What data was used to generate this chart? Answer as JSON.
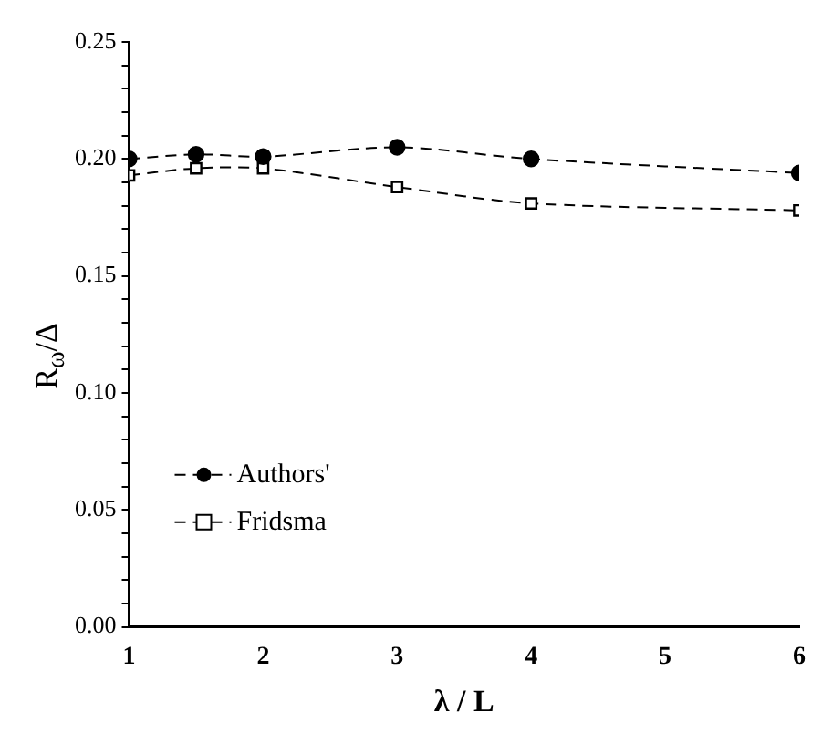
{
  "chart_data": {
    "type": "line",
    "xlabel": "λ / L",
    "ylabel": "R$_{ω}$/Δ",
    "xlim": [
      1,
      6
    ],
    "xticks": [
      1,
      2,
      3,
      4,
      5,
      6
    ],
    "ylim": [
      0,
      0.25
    ],
    "yticks": [
      {
        "value": 0,
        "label": "0.00"
      },
      {
        "value": 0.01,
        "label": null
      },
      {
        "value": 0.02,
        "label": null
      },
      {
        "value": 0.03,
        "label": null
      },
      {
        "value": 0.04,
        "label": null
      },
      0.05,
      {
        "value": 0.06,
        "label": null
      },
      {
        "value": 0.07,
        "label": null
      },
      {
        "value": 0.08,
        "label": null
      },
      {
        "value": 0.09,
        "label": null
      },
      {
        "value": 0.1,
        "label": "0.10"
      },
      {
        "value": 0.11,
        "label": null
      },
      {
        "value": 0.12,
        "label": null
      },
      {
        "value": 0.13,
        "label": null
      },
      {
        "value": 0.14,
        "label": null
      },
      0.15,
      {
        "value": 0.16,
        "label": null
      },
      {
        "value": 0.17,
        "label": null
      },
      {
        "value": 0.18,
        "label": null
      },
      {
        "value": 0.19,
        "label": null
      },
      {
        "value": 0.2,
        "label": "0.20"
      },
      {
        "value": 0.21,
        "label": null
      },
      {
        "value": 0.22,
        "label": null
      },
      {
        "value": 0.23,
        "label": null
      },
      {
        "value": 0.24,
        "label": null
      },
      0.25
    ],
    "grid": false,
    "legend": "left",
    "line_style": "dashed",
    "series": [
      {
        "name": "Authors'",
        "color": "#000000",
        "marker": "circle",
        "x": [
          1,
          1.5,
          2,
          3,
          4,
          6
        ],
        "values": [
          0.2,
          0.202,
          0.201,
          0.205,
          0.2,
          0.194
        ]
      },
      {
        "name": "Fridsma",
        "color": "#000000",
        "marker": "square",
        "x": [
          1,
          1.5,
          2,
          3,
          4,
          6
        ],
        "values": [
          0.193,
          0.196,
          0.196,
          0.188,
          0.181,
          0.178
        ]
      }
    ]
  }
}
